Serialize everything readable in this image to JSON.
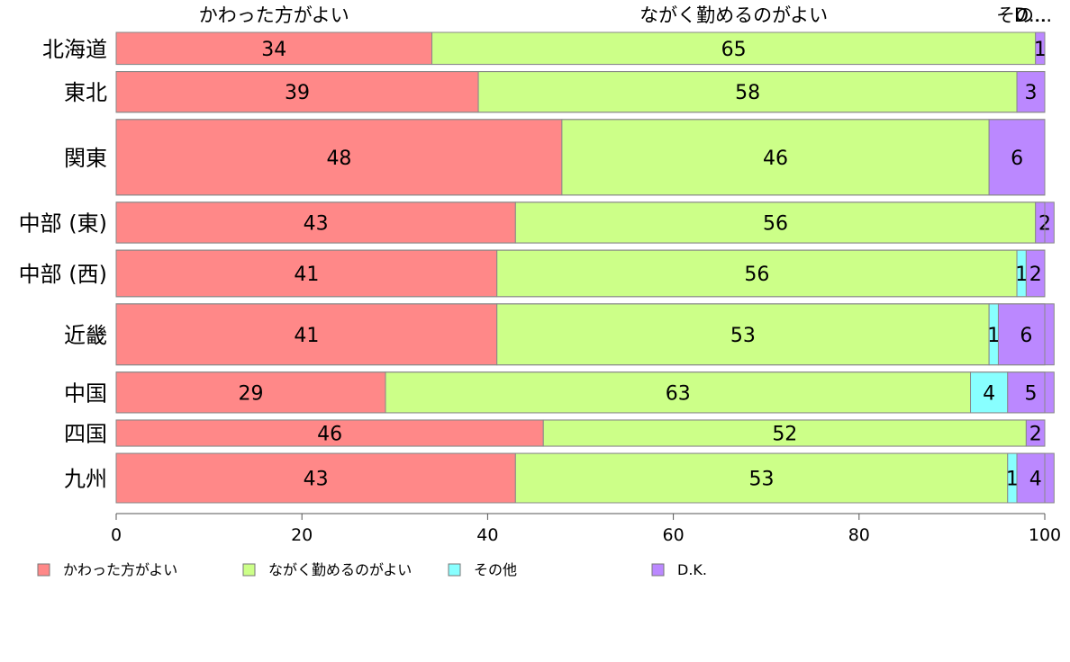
{
  "chart_data": {
    "type": "bar",
    "orientation": "horizontal",
    "stacked": true,
    "categories": [
      "北海道",
      "東北",
      "関東",
      "中部 (東)",
      "中部 (西)",
      "近畿",
      "中国",
      "四国",
      "九州"
    ],
    "category_weights": [
      0.55,
      0.7,
      1.3,
      0.7,
      0.8,
      1.05,
      0.7,
      0.45,
      0.85
    ],
    "series": [
      {
        "name": "かわった方がよい",
        "color": "#ff8888",
        "values": [
          34,
          39,
          48,
          43,
          41,
          41,
          29,
          46,
          43
        ]
      },
      {
        "name": "ながく勤めるのがよい",
        "color": "#ccff88",
        "values": [
          65,
          58,
          46,
          56,
          56,
          53,
          63,
          52,
          53
        ]
      },
      {
        "name": "その他",
        "color": "#88ffff",
        "values": [
          0,
          0,
          0,
          0,
          1,
          1,
          4,
          0,
          1
        ]
      },
      {
        "name": "D.K.",
        "color": "#bb88ff",
        "values": [
          1,
          3,
          6,
          2,
          2,
          6,
          5,
          2,
          4
        ]
      }
    ],
    "top_labels": [
      "かわった方がよい",
      "ながく勤めるのがよい",
      "その...",
      "D..."
    ],
    "xlim": [
      0,
      100
    ],
    "xticks": [
      0,
      20,
      40,
      60,
      80,
      100
    ],
    "xlabel": "",
    "ylabel": "",
    "title": "",
    "legend_position": "bottom",
    "grid": false
  }
}
